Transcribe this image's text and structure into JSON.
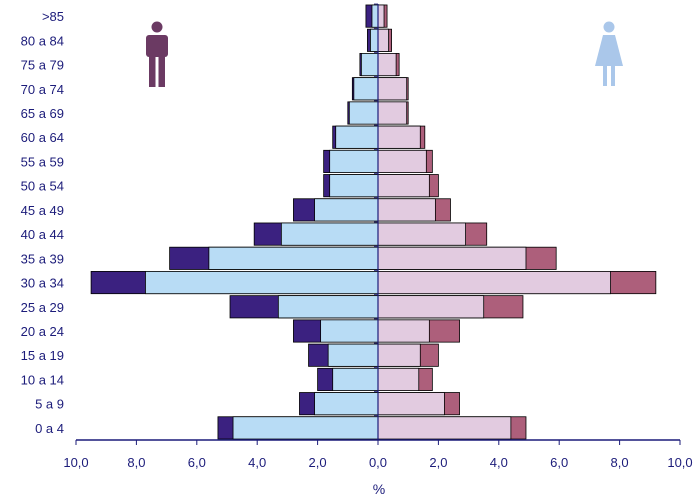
{
  "chart_data": {
    "type": "bar",
    "orientation": "horizontal-population-pyramid",
    "title": "",
    "xlabel": "%",
    "ylabel": "",
    "xlim": [
      -10,
      10
    ],
    "x_ticks": [
      -10,
      -8,
      -6,
      -4,
      -2,
      0,
      2,
      4,
      6,
      8,
      10
    ],
    "x_tick_labels": [
      "10,0",
      "8,0",
      "6,0",
      "4,0",
      "2,0",
      "0,0",
      "2,0",
      "4,0",
      "6,0",
      "8,0",
      "10,0"
    ],
    "grid": false,
    "legend": "none",
    "icons": {
      "left": "man-icon",
      "right": "woman-icon"
    },
    "categories": [
      ">85",
      "80 a 84",
      "75 a 79",
      "70 a 74",
      "65 a 69",
      "60 a 64",
      "55 a 59",
      "50 a 54",
      "45 a 49",
      "40 a 44",
      "35 a 39",
      "30 a 34",
      "25 a 29",
      "20 a 24",
      "15 a 19",
      "10 a 14",
      "5 a 9",
      "0 a 4"
    ],
    "series": [
      {
        "side": "male",
        "color": "#b8dcf5",
        "values": [
          0.2,
          0.25,
          0.55,
          0.8,
          0.95,
          1.4,
          1.6,
          1.6,
          2.1,
          3.2,
          5.6,
          7.7,
          3.3,
          1.9,
          1.65,
          1.5,
          2.1,
          4.8
        ]
      },
      {
        "side": "male",
        "color": "#3b2180",
        "values": [
          0.4,
          0.35,
          0.6,
          0.85,
          1.0,
          1.5,
          1.8,
          1.8,
          2.8,
          4.1,
          6.9,
          9.5,
          4.9,
          2.8,
          2.3,
          2.0,
          2.6,
          5.3
        ]
      },
      {
        "side": "female",
        "color": "#e2cbe0",
        "values": [
          0.2,
          0.35,
          0.6,
          0.95,
          0.95,
          1.4,
          1.6,
          1.7,
          1.9,
          2.9,
          4.9,
          7.7,
          3.5,
          1.7,
          1.4,
          1.35,
          2.2,
          4.4
        ]
      },
      {
        "side": "female",
        "color": "#ad5f7b",
        "values": [
          0.3,
          0.45,
          0.7,
          1.0,
          1.0,
          1.55,
          1.8,
          2.0,
          2.4,
          3.6,
          5.9,
          9.2,
          4.8,
          2.7,
          2.0,
          1.8,
          2.7,
          4.9
        ]
      }
    ]
  }
}
